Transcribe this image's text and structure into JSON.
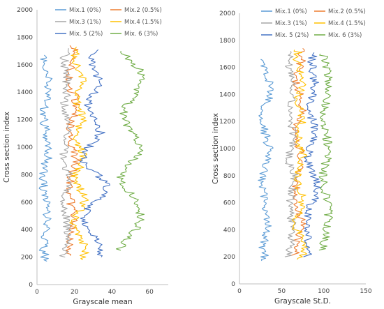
{
  "chart_data": [
    {
      "type": "line",
      "xlabel": "Grayscale mean",
      "ylabel": "Cross section index",
      "xlim": [
        0,
        70
      ],
      "ylim": [
        0,
        2000
      ],
      "xticks": [
        "0",
        "20",
        "40",
        "60"
      ],
      "yticks": [
        "0",
        "200",
        "400",
        "600",
        "800",
        "1000",
        "1200",
        "1400",
        "1600",
        "1800",
        "2000"
      ],
      "grid": false,
      "legend": "top",
      "series": [
        {
          "name": "Mix.1 (0%)",
          "color": "#5b9bd5",
          "y_range": [
            170,
            1670
          ],
          "x": [
            4.6,
            3.4,
            4.1,
            5.5,
            5.7,
            5.1,
            4.5,
            3.6,
            3.1,
            3.8,
            5.8,
            5.9,
            5.1,
            4.1,
            3.3,
            3.8,
            5.5,
            5.9,
            5.6,
            4.6,
            3.6
          ]
        },
        {
          "name": "Mix.2 (0.5%)",
          "color": "#ed7d31",
          "y_range": [
            210,
            1740
          ],
          "x": [
            17,
            17.2,
            18.6,
            20.4,
            19.7,
            18.2,
            16.9,
            17.9,
            19.1,
            21.3,
            19.3,
            17,
            16.9,
            18.8,
            20.5,
            20.6,
            17.7,
            16.6,
            18.6,
            20.5,
            19.3
          ]
        },
        {
          "name": "Mix.3 (1%)",
          "color": "#a5a5a5",
          "y_range": [
            200,
            1720
          ],
          "x": [
            14.2,
            15.1,
            16.3,
            16.3,
            15.1,
            14.4,
            15.5,
            16.2,
            16.8,
            14.6,
            14.4,
            16.3,
            16.8,
            15.7,
            14.4,
            15.1,
            16,
            16.1,
            14.7,
            14.5,
            15.7
          ]
        },
        {
          "name": "Mix.4 (1.5%)",
          "color": "#ffc000",
          "y_range": [
            180,
            1730
          ],
          "x": [
            23.5,
            26.1,
            23.8,
            19.4,
            20.3,
            24.1,
            25.6,
            21.7,
            19.8,
            24.3,
            24.9,
            21,
            21.1,
            24.2,
            23.8,
            20.6,
            22.4,
            25.2,
            22.4,
            19.2,
            22
          ]
        },
        {
          "name": "Mix. 5 (2%)",
          "color": "#4472c4",
          "y_range": [
            200,
            1710
          ],
          "x": [
            33.3,
            34.7,
            30.6,
            26.2,
            24.6,
            28.5,
            36.4,
            38.1,
            31.6,
            25.4,
            24.6,
            29.6,
            33.9,
            32.2,
            27.5,
            27.4,
            30.8,
            33.2,
            30.9,
            29.1,
            30.7
          ]
        },
        {
          "name": "Mix. 6 (3%)",
          "color": "#70ad47",
          "y_range": [
            250,
            1700
          ],
          "x": [
            43.6,
            47.7,
            52.7,
            55.3,
            54.5,
            52.5,
            48.7,
            44.3,
            46,
            51.3,
            55.6,
            54.3,
            50.2,
            46.3,
            46,
            50.1,
            53.6,
            56,
            55.1,
            50.4,
            44.8
          ]
        }
      ]
    },
    {
      "type": "line",
      "xlabel": "Grayscale St.D.",
      "ylabel": "Cross section index",
      "xlim": [
        0,
        150
      ],
      "ylim": [
        0,
        2000
      ],
      "xticks": [
        "0",
        "50",
        "100",
        "150"
      ],
      "yticks": [
        "0",
        "200",
        "400",
        "600",
        "800",
        "1000",
        "1200",
        "1400",
        "1600",
        "1800",
        "2000"
      ],
      "grid": false,
      "legend": "top",
      "series": [
        {
          "name": "Mix.1 (0%)",
          "color": "#5b9bd5",
          "y_range": [
            170,
            1660
          ],
          "x": [
            31.4,
            27.3,
            29.4,
            34.5,
            34.6,
            32.3,
            31,
            27.9,
            26.4,
            28.9,
            35.6,
            35.6,
            32.6,
            29.6,
            26.9,
            28.3,
            34.2,
            35.8,
            34.3,
            31.5,
            27.9
          ]
        },
        {
          "name": "Mix.2 (0.5%)",
          "color": "#ed7d31",
          "y_range": [
            210,
            1740
          ],
          "x": [
            66.5,
            67.1,
            70,
            73.6,
            72.1,
            69.5,
            66.8,
            68.7,
            71.3,
            75.5,
            71.6,
            67,
            66.9,
            70.7,
            74,
            74.2,
            68.5,
            66.2,
            70.2,
            74.1,
            71.6
          ]
        },
        {
          "name": "Mix.3 (1%)",
          "color": "#a5a5a5",
          "y_range": [
            200,
            1720
          ],
          "x": [
            58.5,
            60.8,
            63.3,
            63.3,
            60.7,
            59.1,
            61.5,
            63,
            64,
            59.5,
            59.2,
            62.9,
            64,
            61.7,
            59.3,
            60.7,
            62.4,
            62.6,
            59.8,
            59.4,
            61.7
          ]
        },
        {
          "name": "Mix.4 (1.5%)",
          "color": "#ffc000",
          "y_range": [
            180,
            1730
          ],
          "x": [
            73,
            76.8,
            73.3,
            66.7,
            68.1,
            73.7,
            76,
            70.3,
            68.1,
            74,
            75.2,
            69.6,
            69.6,
            74,
            73.6,
            69,
            71.6,
            75.7,
            71.6,
            66.3,
            70.4
          ]
        },
        {
          "name": "Mix. 5 (2%)",
          "color": "#4472c4",
          "y_range": [
            200,
            1710
          ],
          "x": [
            80.3,
            84.2,
            80.6,
            78.7,
            79.8,
            83.4,
            91.6,
            92.5,
            87.2,
            82.8,
            81.6,
            85.8,
            90.1,
            88.5,
            84.3,
            84.2,
            87.5,
            90,
            87.7,
            85.6,
            87.5
          ]
        },
        {
          "name": "Mix. 6 (3%)",
          "color": "#70ad47",
          "y_range": [
            250,
            1700
          ],
          "x": [
            98.6,
            100.9,
            103.7,
            105.7,
            105.2,
            103.9,
            101.7,
            99.1,
            100,
            103,
            105.4,
            104.7,
            102.4,
            100.1,
            100,
            102.3,
            104.3,
            105.7,
            105.2,
            102.5,
            99.3
          ]
        }
      ]
    }
  ]
}
